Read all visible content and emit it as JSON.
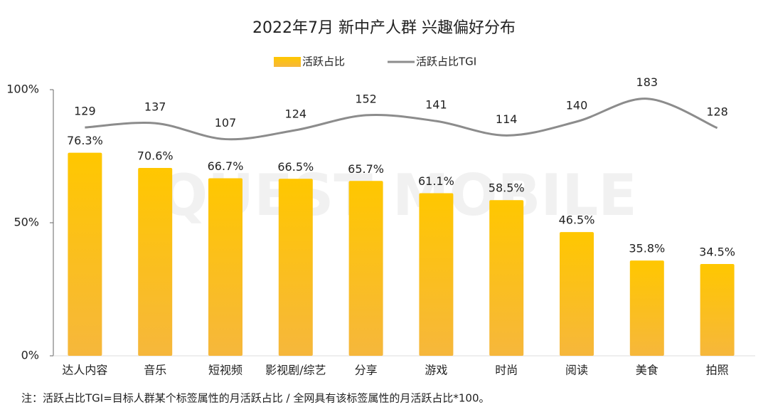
{
  "chart_data": {
    "type": "bar",
    "title": "2022年7月 新中产人群 兴趣偏好分布",
    "categories": [
      "达人内容",
      "音乐",
      "短视频",
      "影视剧/综艺",
      "分享",
      "游戏",
      "时尚",
      "阅读",
      "美食",
      "拍照"
    ],
    "series": [
      {
        "name": "活跃占比",
        "color": "#fbbf1a",
        "type": "bar",
        "values": [
          76.3,
          70.6,
          66.7,
          66.5,
          65.7,
          61.1,
          58.5,
          46.5,
          35.8,
          34.5
        ],
        "value_labels": [
          "76.3%",
          "70.6%",
          "66.7%",
          "66.5%",
          "65.7%",
          "61.1%",
          "58.5%",
          "46.5%",
          "35.8%",
          "34.5%"
        ]
      },
      {
        "name": "活跃占比TGI",
        "color": "#8c8c8c",
        "type": "line",
        "axis": "y2",
        "values": [
          129,
          137,
          107,
          124,
          152,
          141,
          114,
          140,
          183,
          128
        ]
      }
    ],
    "ylim": [
      0,
      100
    ],
    "yticks": [
      {
        "value": 0,
        "label": "0%"
      },
      {
        "value": 50,
        "label": "50%"
      },
      {
        "value": 100,
        "label": "100%"
      }
    ],
    "y2lim": [
      -300,
      200
    ],
    "legend": "top",
    "watermark": "QUEST MOBILE",
    "note": "注：活跃占比TGI=目标人群某个标签属性的月活跃占比 / 全网具有该标签属性的月活跃占比*100。"
  }
}
